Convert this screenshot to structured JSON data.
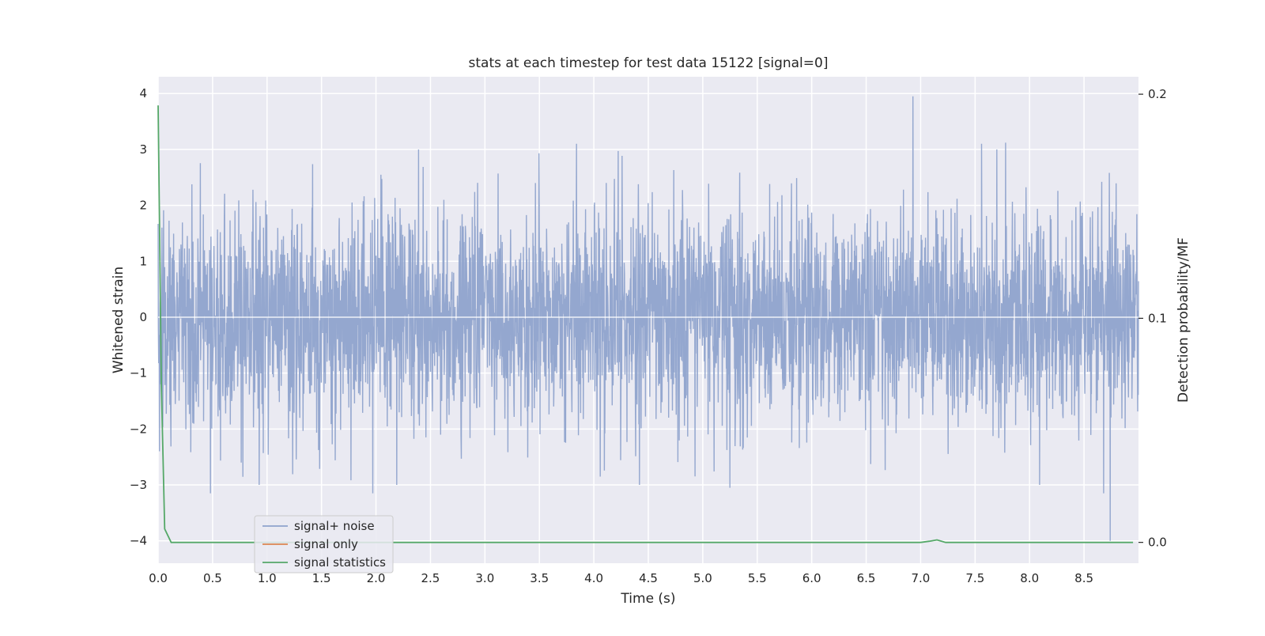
{
  "chart_data": {
    "type": "line",
    "title": "stats at each timestep for test data 15122 [signal=0]",
    "xlabel": "Time (s)",
    "ylabel": "Whitened strain",
    "y2label": "Detection probability/MF",
    "xlim": [
      0.0,
      9.0
    ],
    "ylim": [
      -4.4,
      4.3
    ],
    "y2lim": [
      -0.0093,
      0.2078
    ],
    "xticks": [
      "0.0",
      "0.5",
      "1.0",
      "1.5",
      "2.0",
      "2.5",
      "3.0",
      "3.5",
      "4.0",
      "4.5",
      "5.0",
      "5.5",
      "6.0",
      "6.5",
      "7.0",
      "7.5",
      "8.0",
      "8.5"
    ],
    "yticks": [
      "−4",
      "−3",
      "−2",
      "−1",
      "0",
      "1",
      "2",
      "3",
      "4"
    ],
    "y2ticks": [
      "0.0",
      "0.1",
      "0.2"
    ],
    "grid": true,
    "legend_position": "lower-left",
    "colors": {
      "background": "#eaeaf2",
      "grid": "#ffffff",
      "noise": "#8fa3cc",
      "signal_only": "#dd8452",
      "statistics": "#55a868"
    },
    "series": [
      {
        "name": "signal+ noise",
        "axis": "left",
        "description_of_values": "whitened strain noise, approx. Gaussian, std 1, sampled densely over 0–9 s",
        "x_range": [
          0.0,
          9.0
        ],
        "peak_values": [
          [
            0.48,
            -3.15
          ],
          [
            1.97,
            -3.15
          ],
          [
            2.39,
            3.0
          ],
          [
            3.84,
            3.1
          ],
          [
            5.25,
            -3.05
          ],
          [
            6.93,
            3.95
          ],
          [
            7.56,
            3.1
          ],
          [
            7.78,
            3.12
          ],
          [
            8.74,
            -4.0
          ],
          [
            8.68,
            -3.15
          ]
        ]
      },
      {
        "name": "signal only",
        "axis": "left",
        "x": [
          0.0,
          9.0
        ],
        "y": [
          0.0,
          0.0
        ]
      },
      {
        "name": "signal statistics",
        "axis": "right",
        "x": [
          0.0,
          0.03,
          0.06,
          0.12,
          0.2,
          7.0,
          7.08,
          7.15,
          7.23,
          7.3,
          8.95
        ],
        "y": [
          0.195,
          0.07,
          0.006,
          0.0,
          0.0,
          0.0,
          0.0005,
          0.0011,
          0.0,
          0.0,
          0.0
        ]
      }
    ]
  }
}
